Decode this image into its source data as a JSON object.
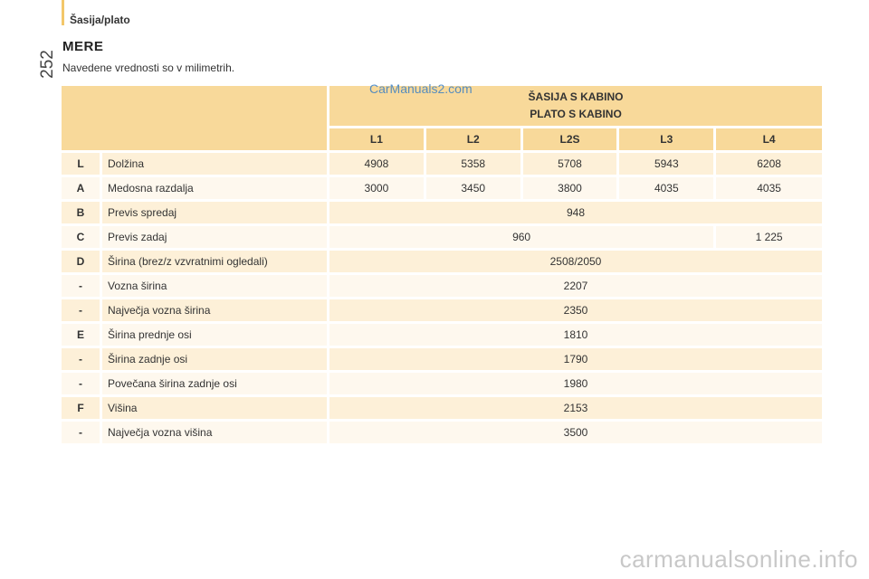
{
  "header": {
    "section": "Šasija/plato",
    "page_number": "252"
  },
  "heading": "MERE",
  "subtitle": "Navedene vrednosti so v milimetrih.",
  "watermarks": {
    "top": "CarManuals2.com",
    "bottom": "carmanualsonline.info"
  },
  "table": {
    "group_header": {
      "line1": "ŠASIJA S KABINO",
      "line2": "PLATO S KABINO"
    },
    "variants": [
      "L1",
      "L2",
      "L2S",
      "L3",
      "L4"
    ],
    "rows": [
      {
        "code": "L",
        "label": "Dolžina",
        "values": [
          "4908",
          "5358",
          "5708",
          "5943",
          "6208"
        ]
      },
      {
        "code": "A",
        "label": "Medosna razdalja",
        "values": [
          "3000",
          "3450",
          "3800",
          "4035",
          "4035"
        ]
      },
      {
        "code": "B",
        "label": "Previs spredaj",
        "values": [
          "948"
        ]
      },
      {
        "code": "C",
        "label": "Previs zadaj",
        "values": [
          "960",
          "1 225"
        ]
      },
      {
        "code": "D",
        "label": "Širina (brez/z vzvratnimi ogledali)",
        "values": [
          "2508/2050"
        ]
      },
      {
        "code": "-",
        "label": "Vozna širina",
        "values": [
          "2207"
        ]
      },
      {
        "code": "-",
        "label": "Največja vozna širina",
        "values": [
          "2350"
        ]
      },
      {
        "code": "E",
        "label": "Širina prednje osi",
        "values": [
          "1810"
        ]
      },
      {
        "code": "-",
        "label": "Širina zadnje osi",
        "values": [
          "1790"
        ]
      },
      {
        "code": "-",
        "label": "Povečana širina zadnje osi",
        "values": [
          "1980"
        ]
      },
      {
        "code": "F",
        "label": "Višina",
        "values": [
          "2153"
        ]
      },
      {
        "code": "-",
        "label": "Največja vozna višina",
        "values": [
          "3500"
        ]
      }
    ]
  }
}
